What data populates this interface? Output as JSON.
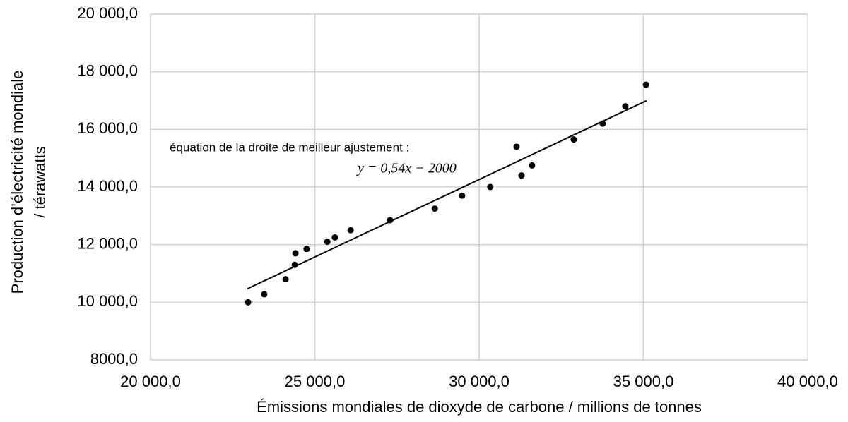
{
  "chart_data": {
    "type": "scatter",
    "xlabel": "Émissions mondiales de dioxyde de carbone / millions de tonnes",
    "ylabel": [
      "Production d’électricité mondiale",
      "/ térawatts"
    ],
    "annotations": [
      "équation de la droite de meilleur ajustement :",
      "y = 0,54x − 2000"
    ],
    "xlim": [
      20000,
      40000
    ],
    "xticks": [
      {
        "value": 20000,
        "label": "20 000,0"
      },
      {
        "value": 25000,
        "label": "25 000,0"
      },
      {
        "value": 30000,
        "label": "30 000,0"
      },
      {
        "value": 35000,
        "label": "35 000,0"
      },
      {
        "value": 40000,
        "label": "40 000,0"
      }
    ],
    "ylim": [
      8000,
      20000
    ],
    "yticks": [
      {
        "value": 8000,
        "label": "8000,0"
      },
      {
        "value": 10000,
        "label": "10 000,0"
      },
      {
        "value": 12000,
        "label": "12 000,0"
      },
      {
        "value": 14000,
        "label": "14 000,0"
      },
      {
        "value": 16000,
        "label": "16 000,0"
      },
      {
        "value": 18000,
        "label": "18 000,0"
      },
      {
        "value": 20000,
        "label": "20 000,0"
      }
    ],
    "grid": true,
    "color": "#000000",
    "x": [
      22970,
      23460,
      24110,
      24390,
      24410,
      24750,
      25380,
      25610,
      26090,
      27290,
      28650,
      29480,
      30340,
      31140,
      31290,
      31610,
      32880,
      33760,
      34450,
      35080
    ],
    "values": [
      10000,
      10280,
      10800,
      11300,
      11700,
      11850,
      12100,
      12250,
      12500,
      12850,
      13250,
      13700,
      14000,
      15400,
      14400,
      14750,
      15650,
      16200,
      16800,
      17550
    ],
    "trendline": {
      "x": [
        22950,
        35100
      ],
      "values": [
        10470,
        17000
      ]
    }
  }
}
